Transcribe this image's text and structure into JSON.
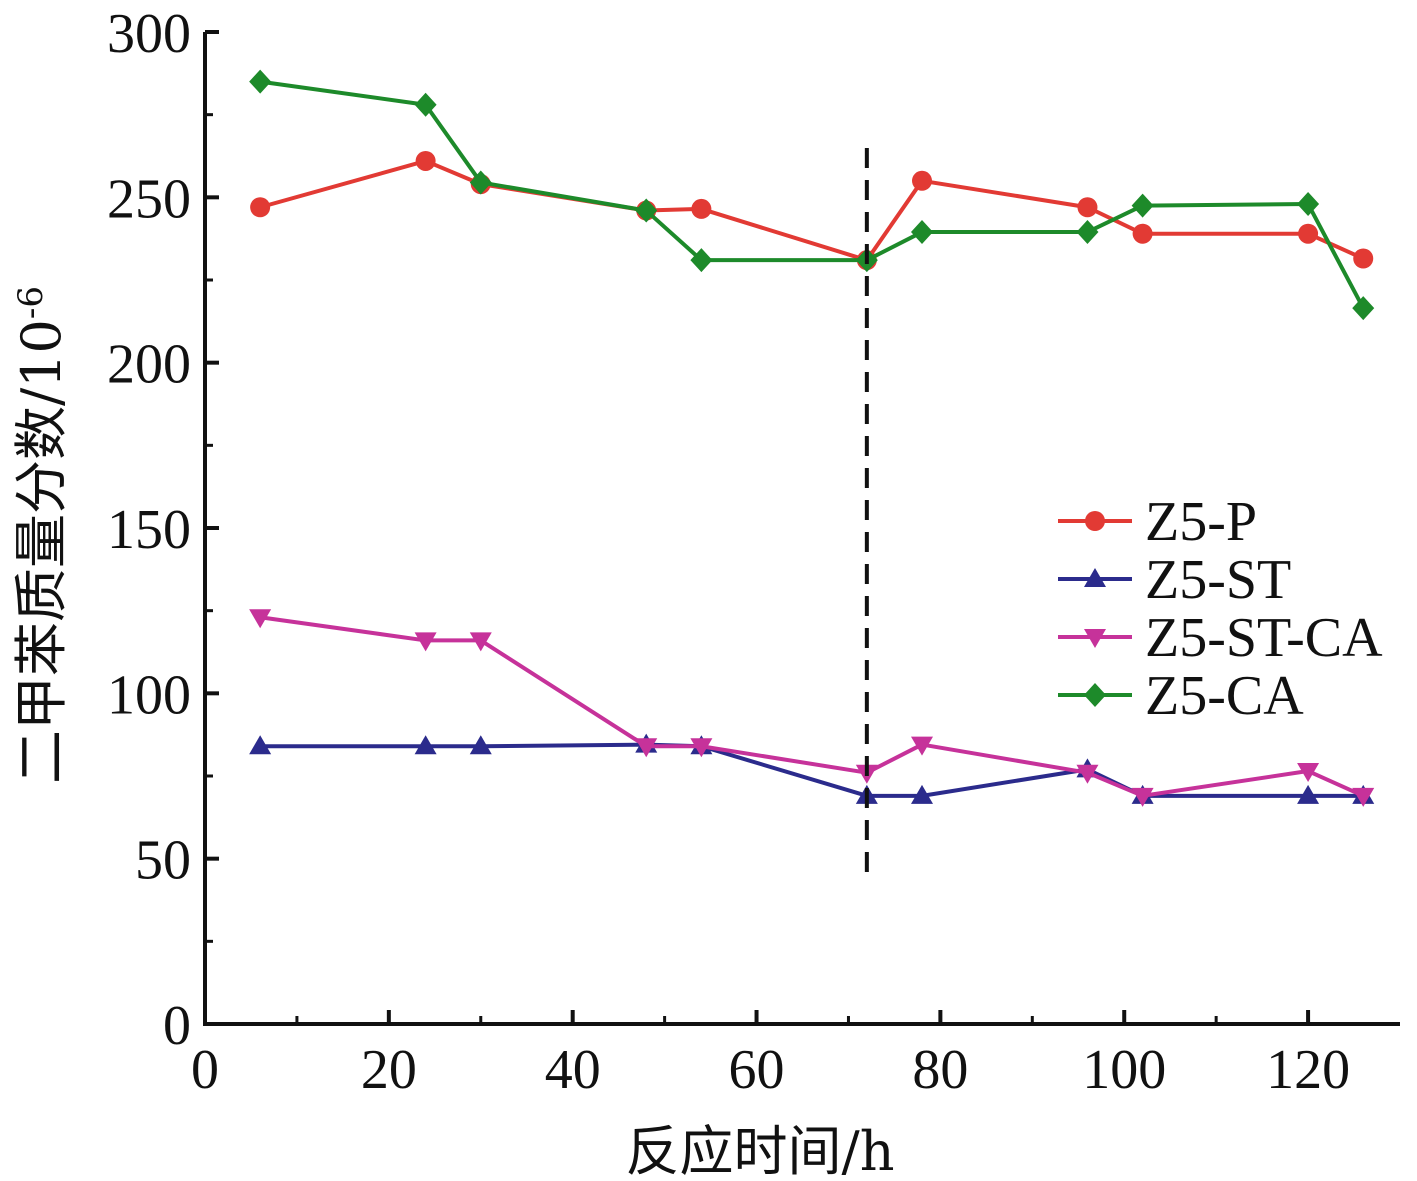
{
  "chart_data": {
    "type": "line",
    "xlabel": "反应时间/h",
    "ylabel": "二甲苯质量分数/10",
    "ylabel_superscript": "-6",
    "xlim": [
      0,
      130
    ],
    "ylim": [
      0,
      300
    ],
    "x_ticks": [
      0,
      20,
      40,
      60,
      80,
      100,
      120
    ],
    "y_ticks": [
      0,
      50,
      100,
      150,
      200,
      250,
      300
    ],
    "x_tick_labels": [
      "0",
      "20",
      "40",
      "60",
      "80",
      "100",
      "120"
    ],
    "y_tick_labels": [
      "0",
      "50",
      "100",
      "150",
      "200",
      "250",
      "300"
    ],
    "vertical_reference_line": {
      "x": 72,
      "style": "dashed",
      "color": "#111111"
    },
    "legend_position": "center-right",
    "grid": false,
    "series": [
      {
        "name": "Z5-P",
        "color": "#e23a34",
        "marker": "circle",
        "x": [
          6,
          24,
          30,
          48,
          54,
          72,
          78,
          96,
          102,
          120,
          126
        ],
        "y": [
          247,
          261,
          254,
          246,
          246.5,
          231,
          255,
          247,
          239,
          239,
          231.5
        ]
      },
      {
        "name": "Z5-ST",
        "color": "#2b2b8c",
        "marker": "triangle-up",
        "x": [
          6,
          24,
          30,
          48,
          54,
          72,
          78,
          96,
          102,
          120,
          126
        ],
        "y": [
          84,
          84,
          84,
          84.5,
          84,
          69,
          69,
          77,
          69,
          69,
          69
        ]
      },
      {
        "name": "Z5-ST-CA",
        "color": "#c6329a",
        "marker": "triangle-down",
        "x": [
          6,
          24,
          30,
          48,
          54,
          72,
          78,
          96,
          102,
          120,
          126
        ],
        "y": [
          123,
          116,
          116,
          84,
          84,
          76,
          84.5,
          76,
          69,
          76.5,
          69
        ]
      },
      {
        "name": "Z5-CA",
        "color": "#1d8a2a",
        "marker": "diamond",
        "x": [
          6,
          24,
          30,
          48,
          54,
          72,
          78,
          96,
          102,
          120,
          126
        ],
        "y": [
          285,
          278,
          254.5,
          246,
          231,
          231,
          239.5,
          239.5,
          247.5,
          248,
          216.5
        ]
      }
    ]
  }
}
